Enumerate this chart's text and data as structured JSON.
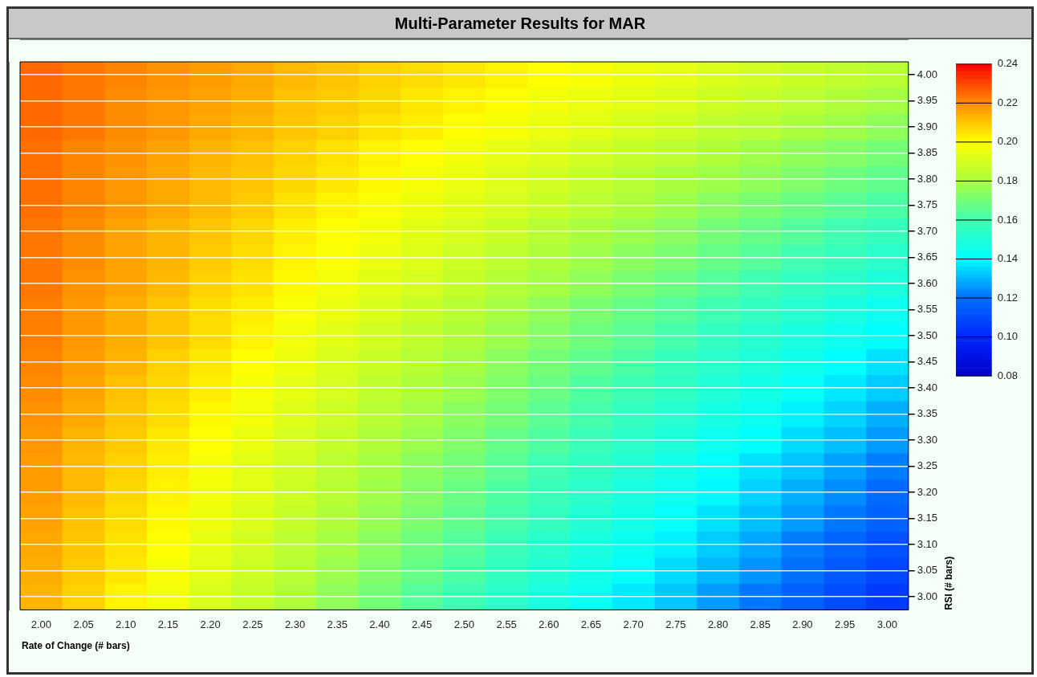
{
  "chart_data": {
    "type": "heatmap",
    "title": "Multi-Parameter Results for MAR",
    "xlabel": "Rate of Change (# bars)",
    "ylabel": "RSI (# bars)",
    "grid": "y",
    "categories": [
      "2.00",
      "2.05",
      "2.10",
      "2.15",
      "2.20",
      "2.25",
      "2.30",
      "2.35",
      "2.40",
      "2.45",
      "2.50",
      "2.55",
      "2.60",
      "2.65",
      "2.70",
      "2.75",
      "2.80",
      "2.85",
      "2.90",
      "2.95",
      "3.00"
    ],
    "y_categories": [
      "4.00",
      "3.95",
      "3.90",
      "3.85",
      "3.80",
      "3.75",
      "3.70",
      "3.65",
      "3.60",
      "3.55",
      "3.50",
      "3.45",
      "3.40",
      "3.35",
      "3.30",
      "3.25",
      "3.20",
      "3.15",
      "3.10",
      "3.05",
      "3.00"
    ],
    "clim": [
      0.08,
      0.24
    ],
    "cticks": [
      {
        "value": 0.08,
        "label": "0.08"
      },
      {
        "value": 0.1,
        "label": "0.10"
      },
      {
        "value": 0.12,
        "label": "0.12"
      },
      {
        "value": 0.14,
        "label": "0.14"
      },
      {
        "value": 0.16,
        "label": "0.16"
      },
      {
        "value": 0.18,
        "label": "0.18"
      },
      {
        "value": 0.2,
        "label": "0.20"
      },
      {
        "value": 0.22,
        "label": "0.22"
      },
      {
        "value": 0.24,
        "label": "0.24"
      }
    ],
    "cells": [
      [
        0.225,
        0.223,
        0.221,
        0.219,
        0.217,
        0.215,
        0.212,
        0.21,
        0.208,
        0.206,
        0.204,
        0.202,
        0.2,
        0.198,
        0.196,
        0.194,
        0.191,
        0.189,
        0.187,
        0.185,
        0.183
      ],
      [
        0.225,
        0.223,
        0.22,
        0.218,
        0.216,
        0.214,
        0.211,
        0.209,
        0.207,
        0.204,
        0.202,
        0.2,
        0.197,
        0.195,
        0.193,
        0.191,
        0.188,
        0.186,
        0.184,
        0.181,
        0.179
      ],
      [
        0.225,
        0.223,
        0.22,
        0.218,
        0.215,
        0.213,
        0.21,
        0.208,
        0.205,
        0.203,
        0.2,
        0.198,
        0.195,
        0.193,
        0.19,
        0.188,
        0.185,
        0.183,
        0.18,
        0.178,
        0.175
      ],
      [
        0.224,
        0.221,
        0.219,
        0.216,
        0.213,
        0.211,
        0.208,
        0.205,
        0.202,
        0.2,
        0.197,
        0.194,
        0.192,
        0.189,
        0.186,
        0.184,
        0.181,
        0.178,
        0.175,
        0.173,
        0.17
      ],
      [
        0.224,
        0.221,
        0.218,
        0.215,
        0.212,
        0.21,
        0.207,
        0.204,
        0.201,
        0.198,
        0.195,
        0.192,
        0.189,
        0.186,
        0.183,
        0.18,
        0.178,
        0.175,
        0.172,
        0.169,
        0.166
      ],
      [
        0.224,
        0.221,
        0.218,
        0.215,
        0.212,
        0.209,
        0.205,
        0.202,
        0.199,
        0.196,
        0.193,
        0.19,
        0.187,
        0.184,
        0.181,
        0.178,
        0.174,
        0.171,
        0.168,
        0.165,
        0.162
      ],
      [
        0.223,
        0.22,
        0.216,
        0.213,
        0.21,
        0.207,
        0.203,
        0.2,
        0.197,
        0.193,
        0.19,
        0.187,
        0.183,
        0.18,
        0.177,
        0.174,
        0.17,
        0.167,
        0.164,
        0.16,
        0.157
      ],
      [
        0.223,
        0.22,
        0.216,
        0.213,
        0.209,
        0.206,
        0.202,
        0.199,
        0.195,
        0.192,
        0.188,
        0.185,
        0.181,
        0.178,
        0.174,
        0.171,
        0.167,
        0.164,
        0.16,
        0.157,
        0.153
      ],
      [
        0.223,
        0.219,
        0.216,
        0.212,
        0.208,
        0.205,
        0.201,
        0.197,
        0.193,
        0.19,
        0.186,
        0.182,
        0.179,
        0.175,
        0.171,
        0.168,
        0.164,
        0.16,
        0.156,
        0.153,
        0.149
      ],
      [
        0.222,
        0.218,
        0.214,
        0.21,
        0.206,
        0.203,
        0.199,
        0.195,
        0.191,
        0.187,
        0.183,
        0.179,
        0.175,
        0.171,
        0.167,
        0.164,
        0.16,
        0.156,
        0.152,
        0.148,
        0.144
      ],
      [
        0.222,
        0.218,
        0.214,
        0.21,
        0.206,
        0.202,
        0.197,
        0.193,
        0.189,
        0.185,
        0.181,
        0.177,
        0.173,
        0.169,
        0.165,
        0.161,
        0.156,
        0.152,
        0.148,
        0.144,
        0.14
      ],
      [
        0.221,
        0.217,
        0.213,
        0.208,
        0.204,
        0.2,
        0.196,
        0.191,
        0.187,
        0.183,
        0.179,
        0.174,
        0.17,
        0.166,
        0.162,
        0.157,
        0.153,
        0.149,
        0.145,
        0.14,
        0.136
      ],
      [
        0.22,
        0.216,
        0.211,
        0.207,
        0.203,
        0.198,
        0.194,
        0.19,
        0.185,
        0.181,
        0.177,
        0.172,
        0.168,
        0.163,
        0.159,
        0.155,
        0.15,
        0.146,
        0.142,
        0.137,
        0.133
      ],
      [
        0.219,
        0.215,
        0.21,
        0.206,
        0.201,
        0.197,
        0.192,
        0.188,
        0.183,
        0.179,
        0.174,
        0.17,
        0.165,
        0.161,
        0.156,
        0.152,
        0.147,
        0.143,
        0.138,
        0.134,
        0.129
      ],
      [
        0.218,
        0.213,
        0.209,
        0.204,
        0.2,
        0.195,
        0.19,
        0.186,
        0.181,
        0.177,
        0.172,
        0.167,
        0.163,
        0.158,
        0.154,
        0.149,
        0.144,
        0.14,
        0.135,
        0.131,
        0.126
      ],
      [
        0.217,
        0.212,
        0.208,
        0.203,
        0.198,
        0.193,
        0.189,
        0.184,
        0.179,
        0.174,
        0.17,
        0.165,
        0.16,
        0.155,
        0.151,
        0.146,
        0.141,
        0.136,
        0.132,
        0.127,
        0.122
      ],
      [
        0.217,
        0.212,
        0.207,
        0.202,
        0.197,
        0.193,
        0.188,
        0.183,
        0.178,
        0.173,
        0.168,
        0.163,
        0.158,
        0.153,
        0.148,
        0.144,
        0.139,
        0.134,
        0.129,
        0.124,
        0.119
      ],
      [
        0.216,
        0.211,
        0.206,
        0.201,
        0.196,
        0.191,
        0.186,
        0.181,
        0.176,
        0.171,
        0.166,
        0.161,
        0.156,
        0.151,
        0.146,
        0.141,
        0.136,
        0.131,
        0.126,
        0.121,
        0.116
      ],
      [
        0.215,
        0.21,
        0.205,
        0.2,
        0.194,
        0.189,
        0.184,
        0.179,
        0.174,
        0.169,
        0.164,
        0.158,
        0.153,
        0.148,
        0.143,
        0.138,
        0.133,
        0.128,
        0.122,
        0.117,
        0.112
      ],
      [
        0.214,
        0.209,
        0.204,
        0.198,
        0.193,
        0.188,
        0.183,
        0.177,
        0.172,
        0.167,
        0.162,
        0.156,
        0.151,
        0.146,
        0.141,
        0.135,
        0.13,
        0.125,
        0.12,
        0.114,
        0.109
      ],
      [
        0.213,
        0.208,
        0.202,
        0.197,
        0.191,
        0.186,
        0.181,
        0.175,
        0.17,
        0.164,
        0.159,
        0.154,
        0.148,
        0.143,
        0.137,
        0.132,
        0.126,
        0.121,
        0.116,
        0.11,
        0.105
      ]
    ]
  }
}
